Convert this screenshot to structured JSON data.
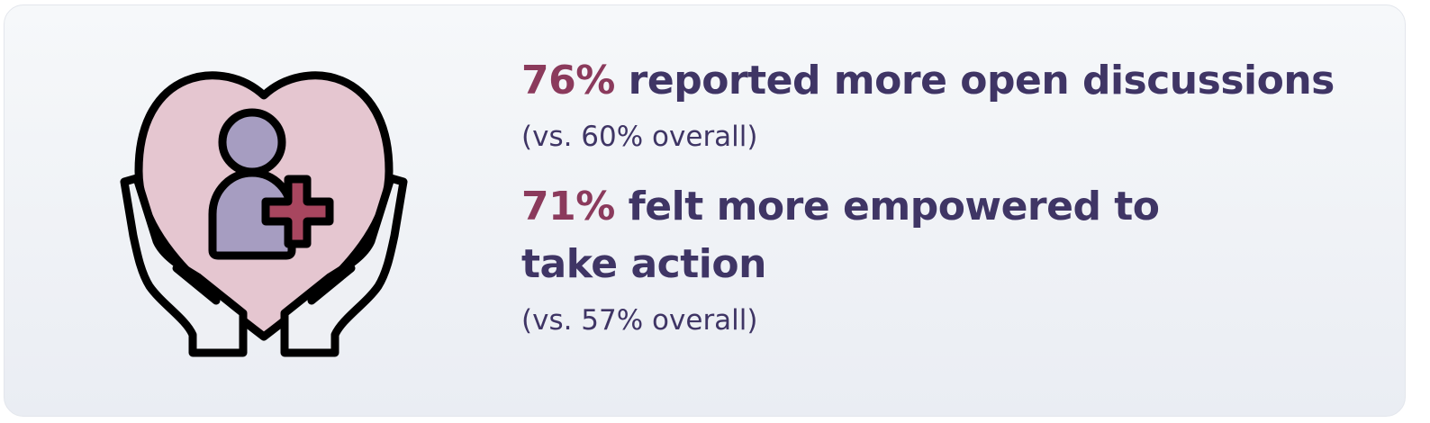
{
  "stats": [
    {
      "percent": "76%",
      "label": "reported more open discussions",
      "comparison": "(vs. 60% overall)"
    },
    {
      "percent": "71%",
      "label": "felt more empowered to take action",
      "comparison": "(vs. 57% overall)"
    }
  ],
  "illustration": {
    "icons": [
      "heart-icon",
      "person-icon",
      "plus-icon",
      "hands-icon"
    ],
    "colors": {
      "heart": "#e5c6d0",
      "person": "#a69dc1",
      "plus": "#a8465f",
      "hands": "#eef0f4",
      "outline": "#000000"
    }
  },
  "colors": {
    "accent": "#8b3a5c",
    "text": "#3f3565"
  }
}
